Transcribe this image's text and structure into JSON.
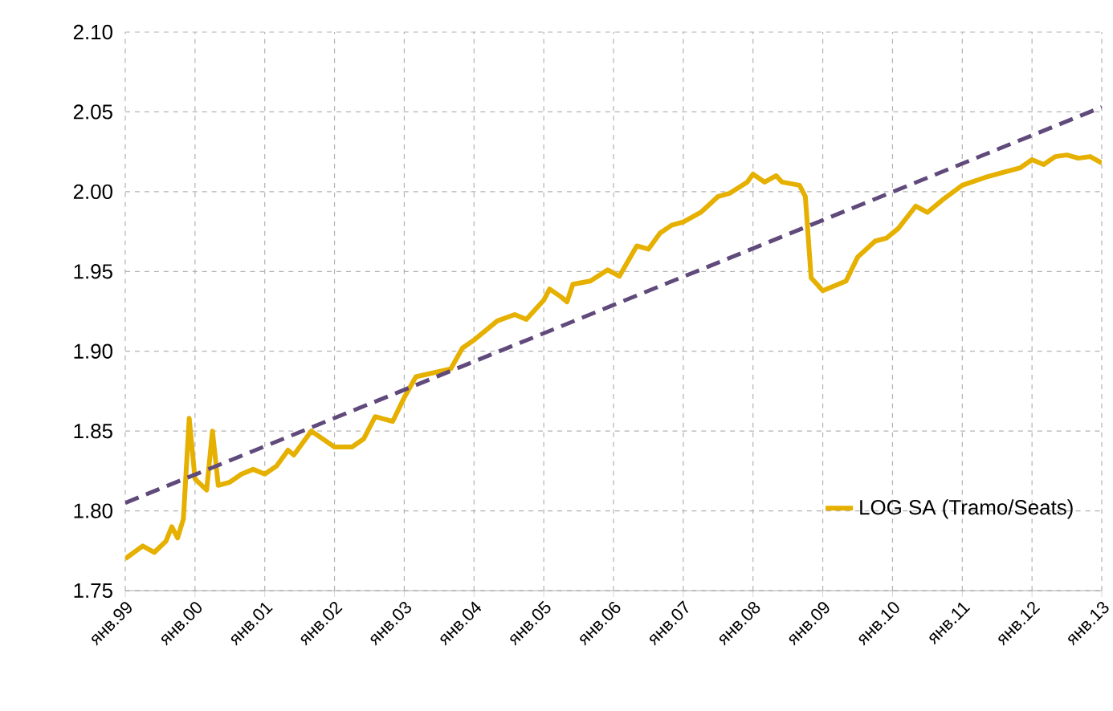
{
  "chart_data": {
    "type": "line",
    "ylim": [
      1.75,
      2.1
    ],
    "yticks": [
      {
        "value": 1.75,
        "label": "1.75"
      },
      {
        "value": 1.8,
        "label": "1.80"
      },
      {
        "value": 1.85,
        "label": "1.85"
      },
      {
        "value": 1.9,
        "label": "1.90"
      },
      {
        "value": 1.95,
        "label": "1.95"
      },
      {
        "value": 2.0,
        "label": "2.00"
      },
      {
        "value": 2.05,
        "label": "2.05"
      },
      {
        "value": 2.1,
        "label": "2.10"
      }
    ],
    "xlim": [
      "1999-01",
      "2013-01"
    ],
    "xticks": [
      {
        "value": "1999-01",
        "label": "янв.99"
      },
      {
        "value": "2000-01",
        "label": "янв.00"
      },
      {
        "value": "2001-01",
        "label": "янв.01"
      },
      {
        "value": "2002-01",
        "label": "янв.02"
      },
      {
        "value": "2003-01",
        "label": "янв.03"
      },
      {
        "value": "2004-01",
        "label": "янв.04"
      },
      {
        "value": "2005-01",
        "label": "янв.05"
      },
      {
        "value": "2006-01",
        "label": "янв.06"
      },
      {
        "value": "2007-01",
        "label": "янв.07"
      },
      {
        "value": "2008-01",
        "label": "янв.08"
      },
      {
        "value": "2009-01",
        "label": "янв.09"
      },
      {
        "value": "2010-01",
        "label": "янв.10"
      },
      {
        "value": "2011-01",
        "label": "янв.11"
      },
      {
        "value": "2012-01",
        "label": "янв.12"
      },
      {
        "value": "2013-01",
        "label": "янв.13"
      }
    ],
    "grid": true,
    "legend": "bottom right",
    "series": [
      {
        "name": "LOG SA   (Tramo/Seats)",
        "color": "#e6b000",
        "line_style": "solid",
        "x": [
          "1999-01",
          "1999-04",
          "1999-06",
          "1999-08",
          "1999-09",
          "1999-10",
          "1999-11",
          "1999-12",
          "2000-01",
          "2000-03",
          "2000-04",
          "2000-05",
          "2000-07",
          "2000-09",
          "2000-11",
          "2001-01",
          "2001-03",
          "2001-05",
          "2001-06",
          "2001-09",
          "2002-01",
          "2002-04",
          "2002-06",
          "2002-08",
          "2002-10",
          "2002-11",
          "2003-01",
          "2003-03",
          "2003-09",
          "2003-11",
          "2004-01",
          "2004-05",
          "2004-08",
          "2004-10",
          "2005-01",
          "2005-02",
          "2005-04",
          "2005-05",
          "2005-06",
          "2005-09",
          "2005-12",
          "2006-02",
          "2006-05",
          "2006-07",
          "2006-09",
          "2006-11",
          "2007-01",
          "2007-04",
          "2007-07",
          "2007-09",
          "2007-12",
          "2008-01",
          "2008-03",
          "2008-05",
          "2008-06",
          "2008-09",
          "2008-10",
          "2008-11",
          "2009-01",
          "2009-05",
          "2009-07",
          "2009-10",
          "2009-12",
          "2010-02",
          "2010-05",
          "2010-07",
          "2010-10",
          "2011-01",
          "2011-05",
          "2011-08",
          "2011-11",
          "2012-01",
          "2012-03",
          "2012-05",
          "2012-07",
          "2012-09",
          "2012-11",
          "2013-01"
        ],
        "values": [
          1.77,
          1.778,
          1.774,
          1.781,
          1.79,
          1.783,
          1.795,
          1.858,
          1.82,
          1.813,
          1.85,
          1.816,
          1.818,
          1.823,
          1.826,
          1.823,
          1.828,
          1.838,
          1.835,
          1.85,
          1.84,
          1.84,
          1.845,
          1.859,
          1.857,
          1.856,
          1.871,
          1.884,
          1.889,
          1.902,
          1.907,
          1.919,
          1.923,
          1.92,
          1.932,
          1.939,
          1.934,
          1.931,
          1.942,
          1.944,
          1.951,
          1.947,
          1.966,
          1.964,
          1.974,
          1.979,
          1.981,
          1.987,
          1.997,
          1.999,
          2.006,
          2.011,
          2.006,
          2.01,
          2.006,
          2.004,
          1.997,
          1.946,
          1.938,
          1.944,
          1.959,
          1.969,
          1.971,
          1.977,
          1.991,
          1.987,
          1.996,
          2.004,
          2.009,
          2.012,
          2.015,
          2.02,
          2.017,
          2.022,
          2.023,
          2.021,
          2.022,
          2.018
        ]
      },
      {
        "color": "#604a7b",
        "line_style": "dashed",
        "x": [
          "1999-01",
          "2013-01"
        ],
        "values": [
          1.805,
          2.053
        ]
      }
    ]
  }
}
